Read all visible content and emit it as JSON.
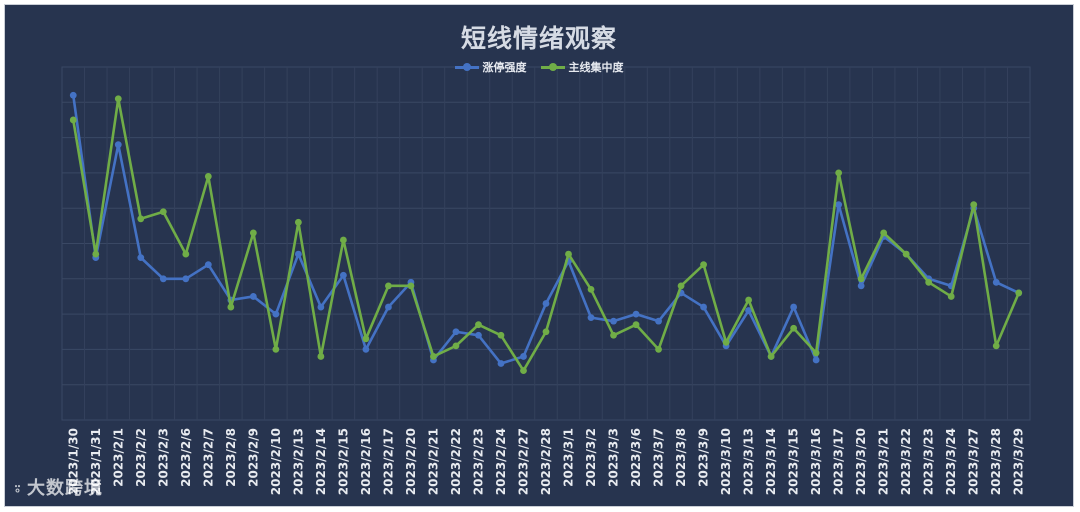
{
  "chart_data": {
    "type": "line",
    "title": "短线情绪观察",
    "categories": [
      "2023/1/30",
      "2023/1/31",
      "2023/2/1",
      "2023/2/2",
      "2023/2/3",
      "2023/2/6",
      "2023/2/7",
      "2023/2/8",
      "2023/2/9",
      "2023/2/10",
      "2023/2/13",
      "2023/2/14",
      "2023/2/15",
      "2023/2/16",
      "2023/2/17",
      "2023/2/20",
      "2023/2/21",
      "2023/2/22",
      "2023/2/23",
      "2023/2/24",
      "2023/2/27",
      "2023/2/28",
      "2023/3/1",
      "2023/3/2",
      "2023/3/3",
      "2023/3/6",
      "2023/3/7",
      "2023/3/8",
      "2023/3/9",
      "2023/3/10",
      "2023/3/13",
      "2023/3/14",
      "2023/3/15",
      "2023/3/16",
      "2023/3/17",
      "2023/3/20",
      "2023/3/21",
      "2023/3/22",
      "2023/3/23",
      "2023/3/24",
      "2023/3/27",
      "2023/3/28",
      "2023/3/29"
    ],
    "series": [
      {
        "name": "涨停强度",
        "color": "#4472c4",
        "values": [
          9.2,
          4.6,
          7.8,
          4.6,
          4.0,
          4.0,
          4.4,
          3.4,
          3.5,
          3.0,
          4.7,
          3.2,
          4.1,
          2.0,
          3.2,
          3.9,
          1.7,
          2.5,
          2.4,
          1.6,
          1.8,
          3.3,
          4.5,
          2.9,
          2.8,
          3.0,
          2.8,
          3.6,
          3.2,
          2.1,
          3.1,
          1.8,
          3.2,
          1.7,
          6.1,
          3.8,
          5.2,
          4.7,
          4.0,
          3.8,
          6.0,
          3.9,
          3.6
        ]
      },
      {
        "name": "主线集中度",
        "color": "#70ad47",
        "values": [
          8.5,
          4.7,
          9.1,
          5.7,
          5.9,
          4.7,
          6.9,
          3.2,
          5.3,
          2.0,
          5.6,
          1.8,
          5.1,
          2.3,
          3.8,
          3.8,
          1.8,
          2.1,
          2.7,
          2.4,
          1.4,
          2.5,
          4.7,
          3.7,
          2.4,
          2.7,
          2.0,
          3.8,
          4.4,
          2.2,
          3.4,
          1.8,
          2.6,
          1.9,
          7.0,
          4.0,
          5.3,
          4.7,
          3.9,
          3.5,
          6.1,
          2.1,
          3.6
        ]
      }
    ],
    "ylim": [
      0,
      10
    ],
    "grid": true,
    "legend": "top-center"
  },
  "watermark": {
    "text": "大数跨境"
  }
}
